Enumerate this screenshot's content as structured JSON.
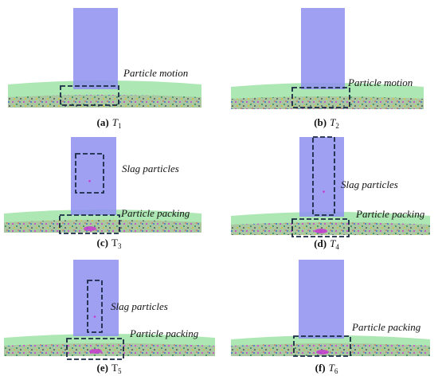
{
  "panels": [
    {
      "label": "(a)",
      "time": "T",
      "subscript": "1",
      "annotations": [
        "Particle motion"
      ]
    },
    {
      "label": "(b)",
      "time": "T",
      "subscript": "2",
      "annotations": [
        "Particle motion"
      ]
    },
    {
      "label": "(c)",
      "time": "T",
      "subscript": "3",
      "annotations": [
        "Slag particles",
        "Particle packing"
      ]
    },
    {
      "label": "(d)",
      "time": "T",
      "subscript": "4",
      "annotations": [
        "Slag particles",
        "Particle packing"
      ]
    },
    {
      "label": "(e)",
      "time": "T",
      "subscript": "5",
      "annotations": [
        "Slag particles",
        "Particle packing"
      ]
    },
    {
      "label": "(f)",
      "time": "T",
      "subscript": "6",
      "annotations": [
        "Particle packing"
      ]
    }
  ]
}
